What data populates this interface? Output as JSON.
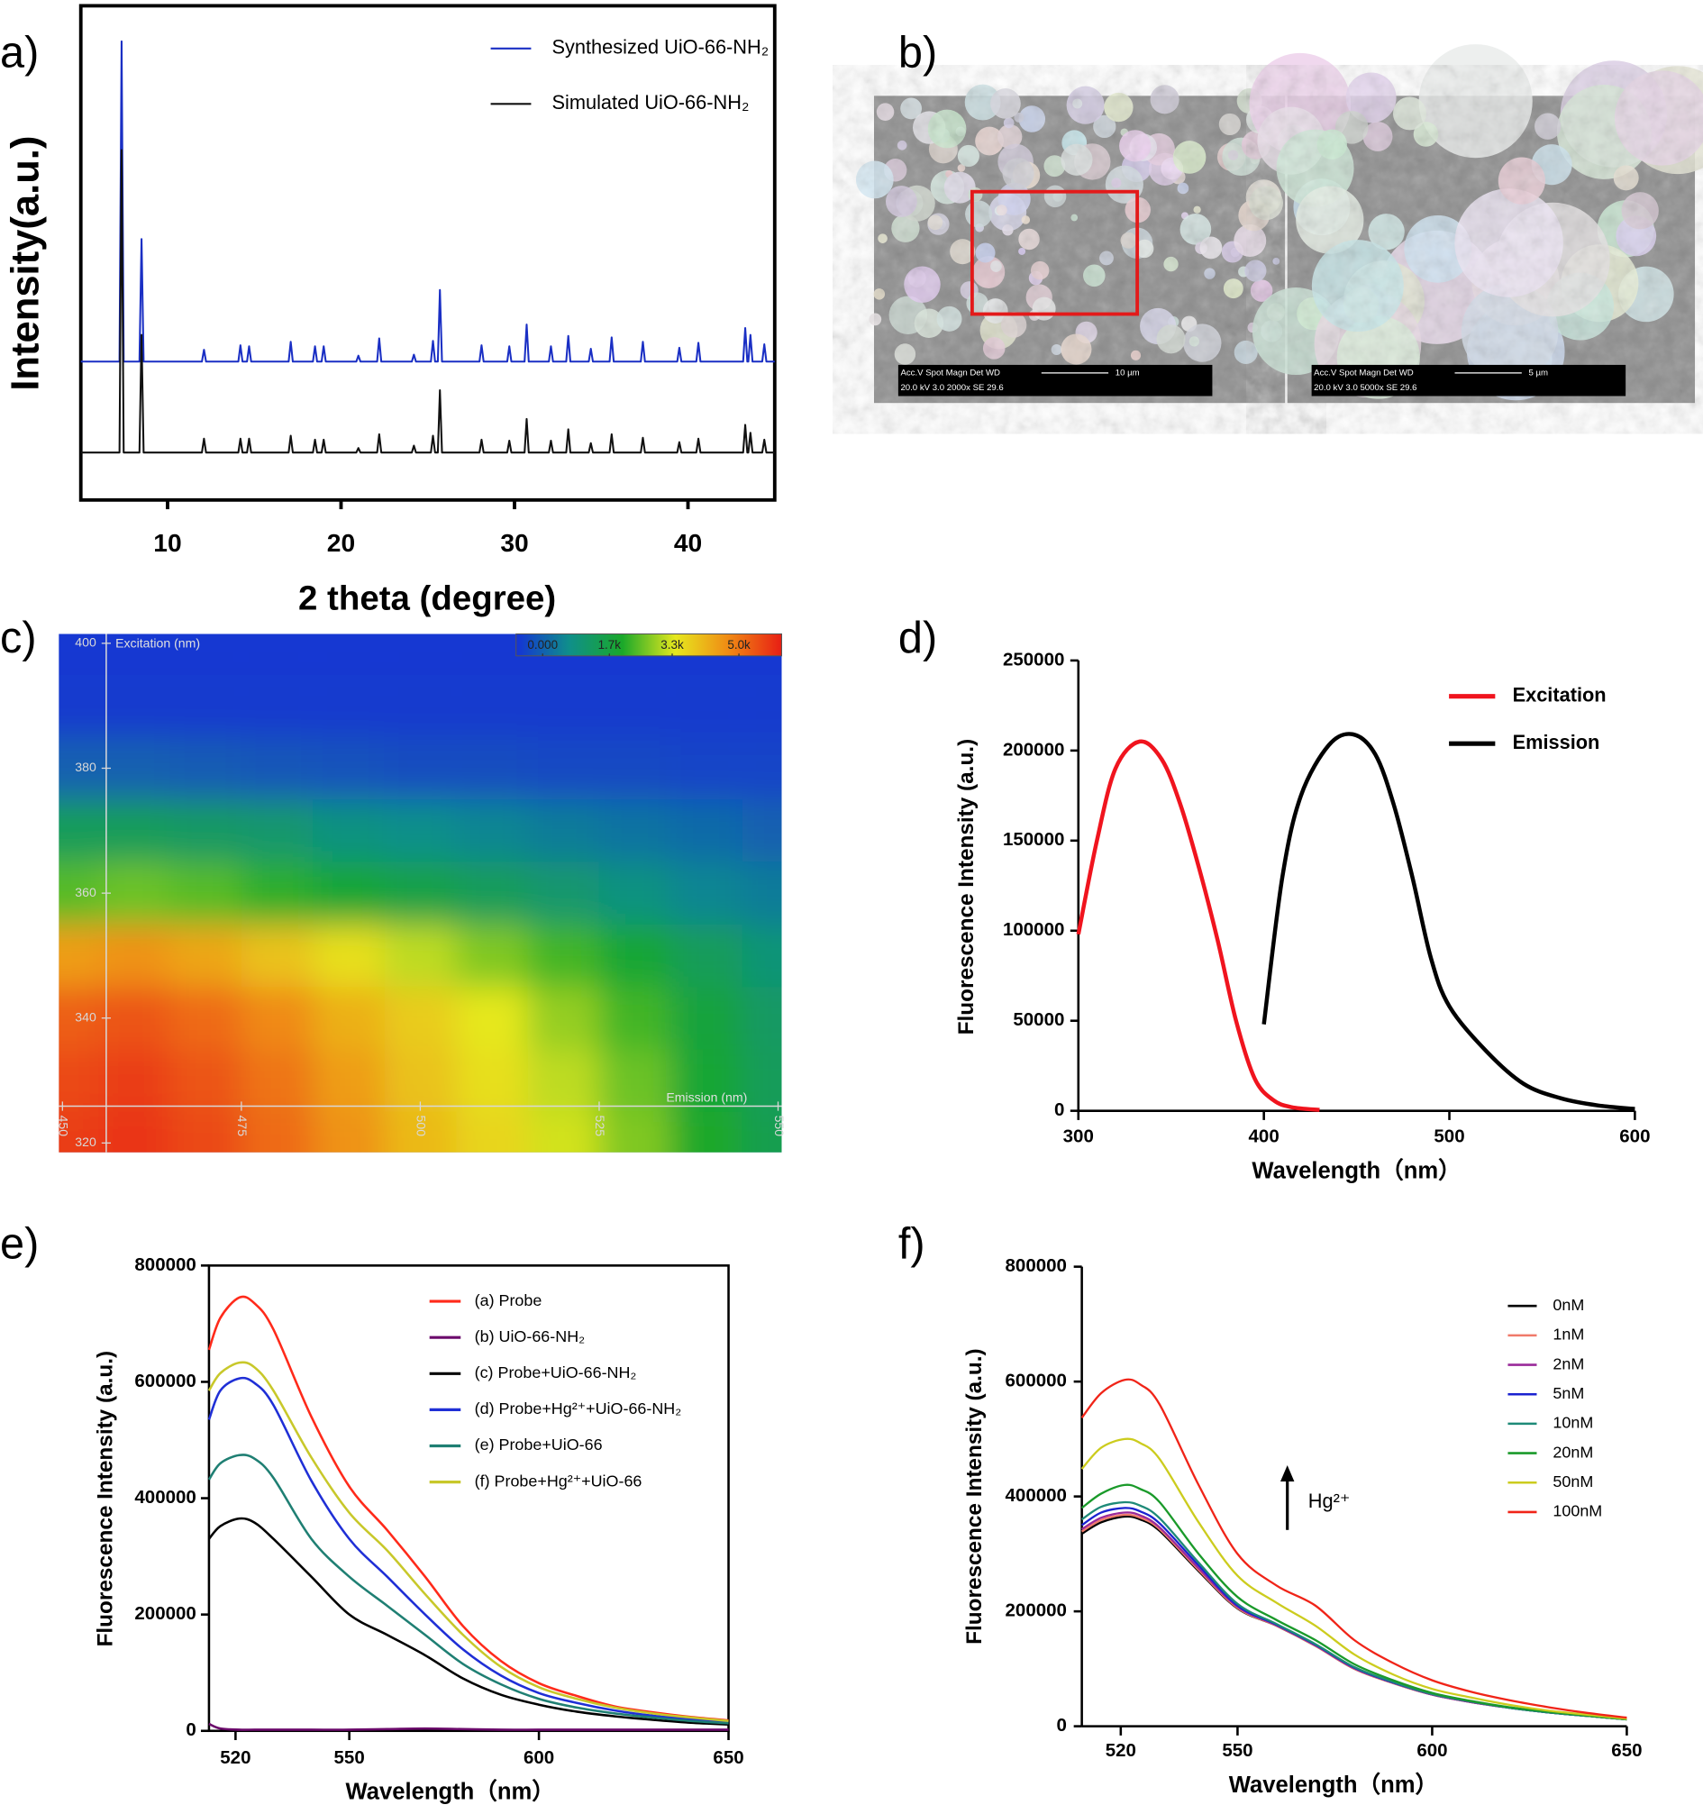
{
  "chart_data": [
    {
      "type": "line",
      "panel_label": "a)",
      "x_label": "2 theta (degree)",
      "y_label": "Intensity(a.u.)",
      "xlim": [
        5,
        45
      ],
      "xticks": [
        10,
        20,
        30,
        40
      ],
      "ylim": [
        0,
        100
      ],
      "legend": "upper right",
      "x": [
        5,
        7.23,
        7.35,
        7.47,
        8.38,
        8.5,
        8.62,
        11.98,
        12.1,
        12.22,
        14.08,
        14.2,
        14.32,
        14.58,
        14.7,
        14.82,
        16.98,
        17.1,
        17.22,
        18.38,
        18.5,
        18.62,
        18.88,
        19,
        19.12,
        20.88,
        21,
        21.12,
        22.08,
        22.2,
        22.32,
        24.08,
        24.2,
        24.32,
        25.18,
        25.3,
        25.42,
        25.58,
        25.7,
        25.82,
        27.98,
        28.1,
        28.22,
        29.58,
        29.7,
        29.82,
        30.58,
        30.7,
        30.82,
        31.98,
        32.1,
        32.22,
        32.98,
        33.1,
        33.22,
        34.28,
        34.4,
        34.52,
        35.48,
        35.6,
        35.72,
        37.28,
        37.4,
        37.52,
        39.38,
        39.5,
        39.62,
        40.48,
        40.6,
        40.72,
        43.18,
        43.3,
        43.42,
        43.48,
        43.6,
        43.72,
        44.28,
        44.4,
        44.52,
        45
      ],
      "series": [
        {
          "name": "Synthesized UiO-66-NH₂",
          "color": "#1a2fc4",
          "values": [
            28,
            28,
            92.8,
            28,
            28,
            52.8,
            28,
            28,
            30.4,
            28,
            28,
            31.3,
            28,
            28,
            31.1,
            28,
            28,
            32.0,
            28,
            28,
            31.1,
            28,
            28,
            31.1,
            28,
            28,
            29.2,
            28,
            28,
            32.7,
            28,
            28,
            29.4,
            28,
            28,
            32.2,
            28,
            28,
            42.5,
            28,
            28,
            31.3,
            28,
            28,
            31.1,
            28,
            28,
            35.5,
            28,
            28,
            31.1,
            28,
            28,
            33.2,
            28,
            28,
            30.6,
            28,
            28,
            32.9,
            28,
            28,
            32.0,
            28,
            28,
            30.8,
            28,
            28,
            31.8,
            28,
            28,
            34.8,
            28,
            28,
            33.4,
            28,
            28,
            31.5,
            28,
            28
          ]
        },
        {
          "name": "Simulated UiO-66-NH₂",
          "color": "#111111",
          "values": [
            9.6,
            9.6,
            70.8,
            9.6,
            9.6,
            33.4,
            9.6,
            9.6,
            12.4,
            9.6,
            9.6,
            12.4,
            9.6,
            9.6,
            12.4,
            9.6,
            9.6,
            13,
            9.6,
            9.6,
            12.2,
            9.6,
            9.6,
            12.2,
            9.6,
            9.6,
            10.5,
            9.6,
            9.6,
            13.3,
            9.6,
            9.6,
            11,
            9.6,
            9.6,
            13,
            9.6,
            9.6,
            22.2,
            9.6,
            9.6,
            12.2,
            9.6,
            9.6,
            12,
            9.6,
            9.6,
            16.4,
            9.6,
            9.6,
            12,
            9.6,
            9.6,
            14.3,
            9.6,
            9.6,
            11.5,
            9.6,
            9.6,
            13.3,
            9.6,
            9.6,
            12.6,
            9.6,
            9.6,
            11.7,
            9.6,
            9.6,
            12.4,
            9.6,
            9.6,
            15.2,
            9.6,
            9.6,
            13.6,
            9.6,
            9.6,
            12.2,
            9.6,
            9.6
          ]
        }
      ]
    },
    {
      "type": "image",
      "panel_label": "b)",
      "scale_bars": [
        {
          "header": "Acc.V  Spot Magn   Det  WD",
          "scale": "10 µm",
          "settings": "20.0 kV 3.0  2000x   SE  29.6"
        },
        {
          "header": "Acc.V  Spot Magn   Det  WD",
          "scale": "5 µm",
          "settings": "20.0 kV 3.0  5000x   SE  29.6"
        }
      ]
    },
    {
      "type": "heatmap",
      "panel_label": "c)",
      "x_label": "Emission (nm)",
      "y_label": "Excitation (nm)",
      "x": [
        450,
        460,
        470,
        480,
        490,
        500,
        510,
        520,
        530,
        540,
        550
      ],
      "y": [
        320,
        330,
        340,
        350,
        360,
        370,
        380,
        390,
        400
      ],
      "z": [
        [
          4700,
          4800,
          4600,
          4300,
          3900,
          3500,
          3200,
          2900,
          2500,
          2000,
          1600
        ],
        [
          4600,
          4700,
          4500,
          4200,
          3800,
          3400,
          3100,
          2800,
          2400,
          1900,
          1500
        ],
        [
          4400,
          4500,
          4300,
          4000,
          3600,
          3300,
          3000,
          2600,
          2200,
          1800,
          1400
        ],
        [
          3800,
          3900,
          3700,
          3400,
          3100,
          2800,
          2500,
          2200,
          1900,
          1500,
          1200
        ],
        [
          2300,
          2400,
          2300,
          2100,
          1900,
          1700,
          1500,
          1300,
          1100,
          900,
          800
        ],
        [
          1500,
          1500,
          1400,
          1300,
          1100,
          1000,
          900,
          800,
          700,
          600,
          500
        ],
        [
          500,
          500,
          450,
          400,
          350,
          300,
          300,
          250,
          250,
          200,
          200
        ],
        [
          100,
          100,
          100,
          100,
          100,
          100,
          100,
          100,
          100,
          100,
          100
        ],
        [
          50,
          50,
          50,
          50,
          50,
          50,
          50,
          50,
          50,
          50,
          50
        ]
      ],
      "xlim": [
        449.5,
        550.5
      ],
      "xticks": [
        450,
        475,
        500,
        525,
        550
      ],
      "ylim": [
        318.5,
        401.5
      ],
      "yticks": [
        320,
        340,
        360,
        380,
        400
      ],
      "colormap": [
        "#1432d6",
        "#0f8f8a",
        "#1aa82a",
        "#e6e81e",
        "#f08a14",
        "#e81e14"
      ],
      "clim": [
        0,
        5000
      ],
      "cticks": [
        {
          "value": 0,
          "label": "0.000"
        },
        {
          "value": 1700,
          "label": "1.7k"
        },
        {
          "value": 3300,
          "label": "3.3k"
        },
        {
          "value": 5000,
          "label": "5.0k"
        }
      ]
    },
    {
      "type": "line",
      "panel_label": "d)",
      "x_label": "Wavelength（nm）",
      "y_label": "Fluorescence Intensity (a.u.)",
      "xlim": [
        300,
        600
      ],
      "xticks": [
        300,
        400,
        500,
        600
      ],
      "ylim": [
        0,
        250000
      ],
      "yticks": [
        0,
        50000,
        100000,
        150000,
        200000,
        250000
      ],
      "legend": "upper right",
      "series": [
        {
          "name": "Excitation",
          "color": "#f0141e",
          "x": [
            300,
            310,
            320,
            333,
            345,
            355,
            365,
            375,
            385,
            395,
            405,
            415,
            430
          ],
          "values": [
            98000,
            150000,
            190000,
            205000,
            195000,
            170000,
            135000,
            95000,
            50000,
            18000,
            6000,
            2000,
            500
          ]
        },
        {
          "name": "Emission",
          "color": "#000000",
          "x": [
            400,
            410,
            420,
            435,
            448,
            460,
            470,
            480,
            490,
            500,
            520,
            540,
            560,
            580,
            600
          ],
          "values": [
            48000,
            130000,
            175000,
            203000,
            209000,
            198000,
            170000,
            130000,
            85000,
            58000,
            33000,
            15000,
            7000,
            3000,
            1000
          ]
        }
      ]
    },
    {
      "type": "line",
      "panel_label": "e)",
      "x_label": "Wavelength（nm）",
      "y_label": "Fluorescence Intensity (a.u.)",
      "xlim": [
        513,
        650
      ],
      "xticks": [
        520,
        550,
        600,
        650
      ],
      "ylim": [
        0,
        800000
      ],
      "yticks": [
        0,
        200000,
        400000,
        600000,
        800000
      ],
      "legend": "upper right",
      "x": [
        513,
        516,
        521,
        525,
        530,
        540,
        550,
        560,
        570,
        580,
        590,
        600,
        610,
        620,
        630,
        640,
        650
      ],
      "series": [
        {
          "name": "(a) Probe",
          "color": "#ff2a1a",
          "values": [
            655000,
            710000,
            745000,
            735000,
            690000,
            540000,
            420000,
            345000,
            265000,
            180000,
            120000,
            82000,
            60000,
            42000,
            32000,
            24000,
            18000
          ]
        },
        {
          "name": "(b) UiO-66-NH₂",
          "color": "#6b0a6b",
          "values": [
            12000,
            4000,
            2000,
            2000,
            2000,
            2000,
            2000,
            3000,
            4000,
            3000,
            2000,
            2000,
            2000,
            2000,
            2000,
            2000,
            2000
          ]
        },
        {
          "name": "(c) Probe+UiO-66-NH₂",
          "color": "#000000",
          "values": [
            330000,
            352000,
            365000,
            358000,
            330000,
            265000,
            200000,
            165000,
            130000,
            90000,
            62000,
            45000,
            33000,
            25000,
            19000,
            14000,
            11000
          ]
        },
        {
          "name": "(d) Probe+Hg²⁺+UiO-66-NH₂",
          "color": "#1f2fd6",
          "values": [
            535000,
            585000,
            606000,
            598000,
            560000,
            430000,
            330000,
            265000,
            200000,
            140000,
            95000,
            65000,
            48000,
            35000,
            26000,
            20000,
            15000
          ]
        },
        {
          "name": "(e) Probe+UiO-66",
          "color": "#1f7f73",
          "values": [
            432000,
            460000,
            474000,
            468000,
            435000,
            330000,
            265000,
            215000,
            165000,
            115000,
            80000,
            55000,
            40000,
            30000,
            23000,
            17000,
            13000
          ]
        },
        {
          "name": "(f) Probe+Hg²⁺+UiO-66",
          "color": "#c8c82a",
          "values": [
            585000,
            615000,
            633000,
            625000,
            585000,
            470000,
            375000,
            310000,
            235000,
            165000,
            110000,
            75000,
            55000,
            40000,
            30000,
            23000,
            17000
          ]
        }
      ]
    },
    {
      "type": "line",
      "panel_label": "f)",
      "x_label": "Wavelength（nm）",
      "y_label": "Fluorescence Intensity (a.u.)",
      "annotation": "Hg²⁺",
      "xlim": [
        510,
        650
      ],
      "xticks": [
        520,
        550,
        600,
        650
      ],
      "ylim": [
        0,
        800000
      ],
      "yticks": [
        0,
        200000,
        400000,
        600000,
        800000
      ],
      "legend": "upper right",
      "x": [
        510,
        515,
        521,
        525,
        530,
        540,
        550,
        560,
        570,
        580,
        590,
        600,
        610,
        620,
        630,
        640,
        650
      ],
      "series": [
        {
          "name": "0nM",
          "color": "#000000",
          "values": [
            335000,
            355000,
            365000,
            360000,
            340000,
            270000,
            205000,
            175000,
            140000,
            100000,
            75000,
            55000,
            42000,
            32000,
            24000,
            18000,
            12000
          ]
        },
        {
          "name": "1nM",
          "color": "#f07a6a",
          "values": [
            339000,
            359000,
            368000,
            363000,
            343000,
            272000,
            206000,
            175000,
            140000,
            100000,
            75000,
            55000,
            42000,
            32000,
            24000,
            18000,
            12000
          ]
        },
        {
          "name": "2nM",
          "color": "#9a2a9a",
          "values": [
            343000,
            363000,
            372000,
            367000,
            346000,
            275000,
            208000,
            176000,
            141000,
            101000,
            76000,
            55000,
            42000,
            32000,
            24000,
            18000,
            12000
          ]
        },
        {
          "name": "5nM",
          "color": "#1a22d0",
          "values": [
            350000,
            372000,
            380000,
            374000,
            353000,
            280000,
            210000,
            177000,
            142000,
            102000,
            76000,
            56000,
            43000,
            32000,
            24000,
            18000,
            12000
          ]
        },
        {
          "name": "10nM",
          "color": "#1e8a78",
          "values": [
            360000,
            382000,
            390000,
            384000,
            362000,
            285000,
            213000,
            178000,
            143000,
            103000,
            77000,
            56000,
            43000,
            32000,
            24000,
            18000,
            12000
          ]
        },
        {
          "name": "20nM",
          "color": "#1a9a2a",
          "values": [
            380000,
            405000,
            420000,
            413000,
            390000,
            300000,
            225000,
            185000,
            150000,
            108000,
            80000,
            58000,
            44000,
            33000,
            25000,
            18000,
            12000
          ]
        },
        {
          "name": "50nM",
          "color": "#cccc1e",
          "values": [
            448000,
            485000,
            500000,
            493000,
            465000,
            355000,
            262000,
            215000,
            175000,
            125000,
            90000,
            65000,
            50000,
            37000,
            27000,
            20000,
            13000
          ]
        },
        {
          "name": "100nM",
          "color": "#f02418",
          "values": [
            537000,
            580000,
            603000,
            595000,
            560000,
            420000,
            300000,
            245000,
            210000,
            150000,
            110000,
            80000,
            60000,
            45000,
            33000,
            23000,
            15000
          ]
        }
      ]
    }
  ]
}
